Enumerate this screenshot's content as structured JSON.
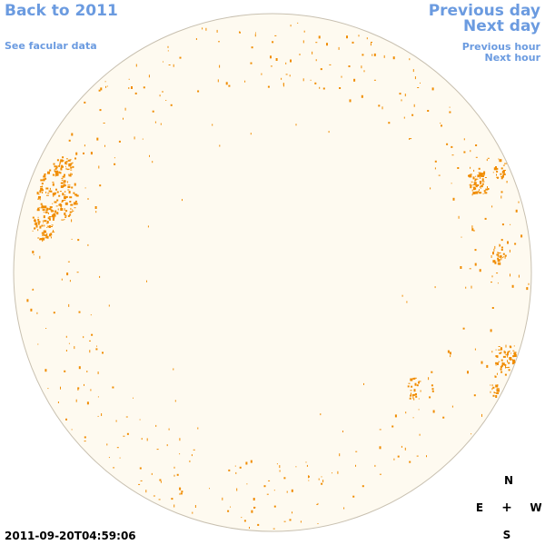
{
  "nav": {
    "back": "Back to 2011",
    "facular": "See facular data",
    "prev_day": "Previous day",
    "next_day": "Next day",
    "prev_hour": "Previous hour",
    "next_hour": "Next hour"
  },
  "timestamp": "2011-09-20T04:59:06",
  "compass": {
    "north": "N",
    "east": "E",
    "center": "+",
    "west": "W",
    "south": "S"
  },
  "colors": {
    "disk_fill": "#fefaf0",
    "disk_stroke": "#c8c0b0",
    "faculae": "#f08c00",
    "link": "#6b9be0"
  }
}
